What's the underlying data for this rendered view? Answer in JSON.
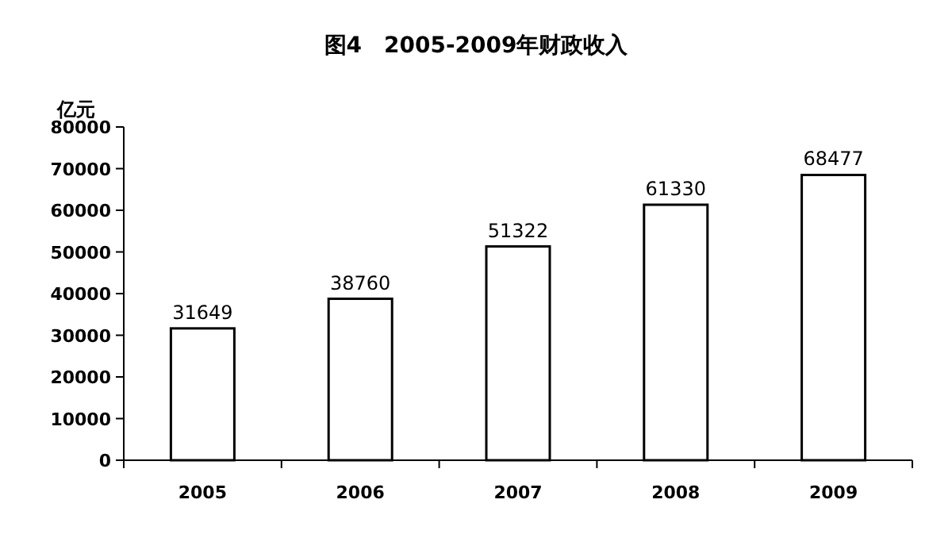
{
  "chart_data": {
    "type": "bar",
    "title": "图4　2005-2009年财政收入",
    "ylabel": "亿元",
    "categories": [
      "2005",
      "2006",
      "2007",
      "2008",
      "2009"
    ],
    "values": [
      31649,
      38760,
      51322,
      61330,
      68477
    ],
    "color": "#ffffff",
    "ylim": [
      0,
      80000
    ],
    "yticks": [
      0,
      10000,
      20000,
      30000,
      40000,
      50000,
      60000,
      70000,
      80000
    ],
    "data_labels": true
  }
}
